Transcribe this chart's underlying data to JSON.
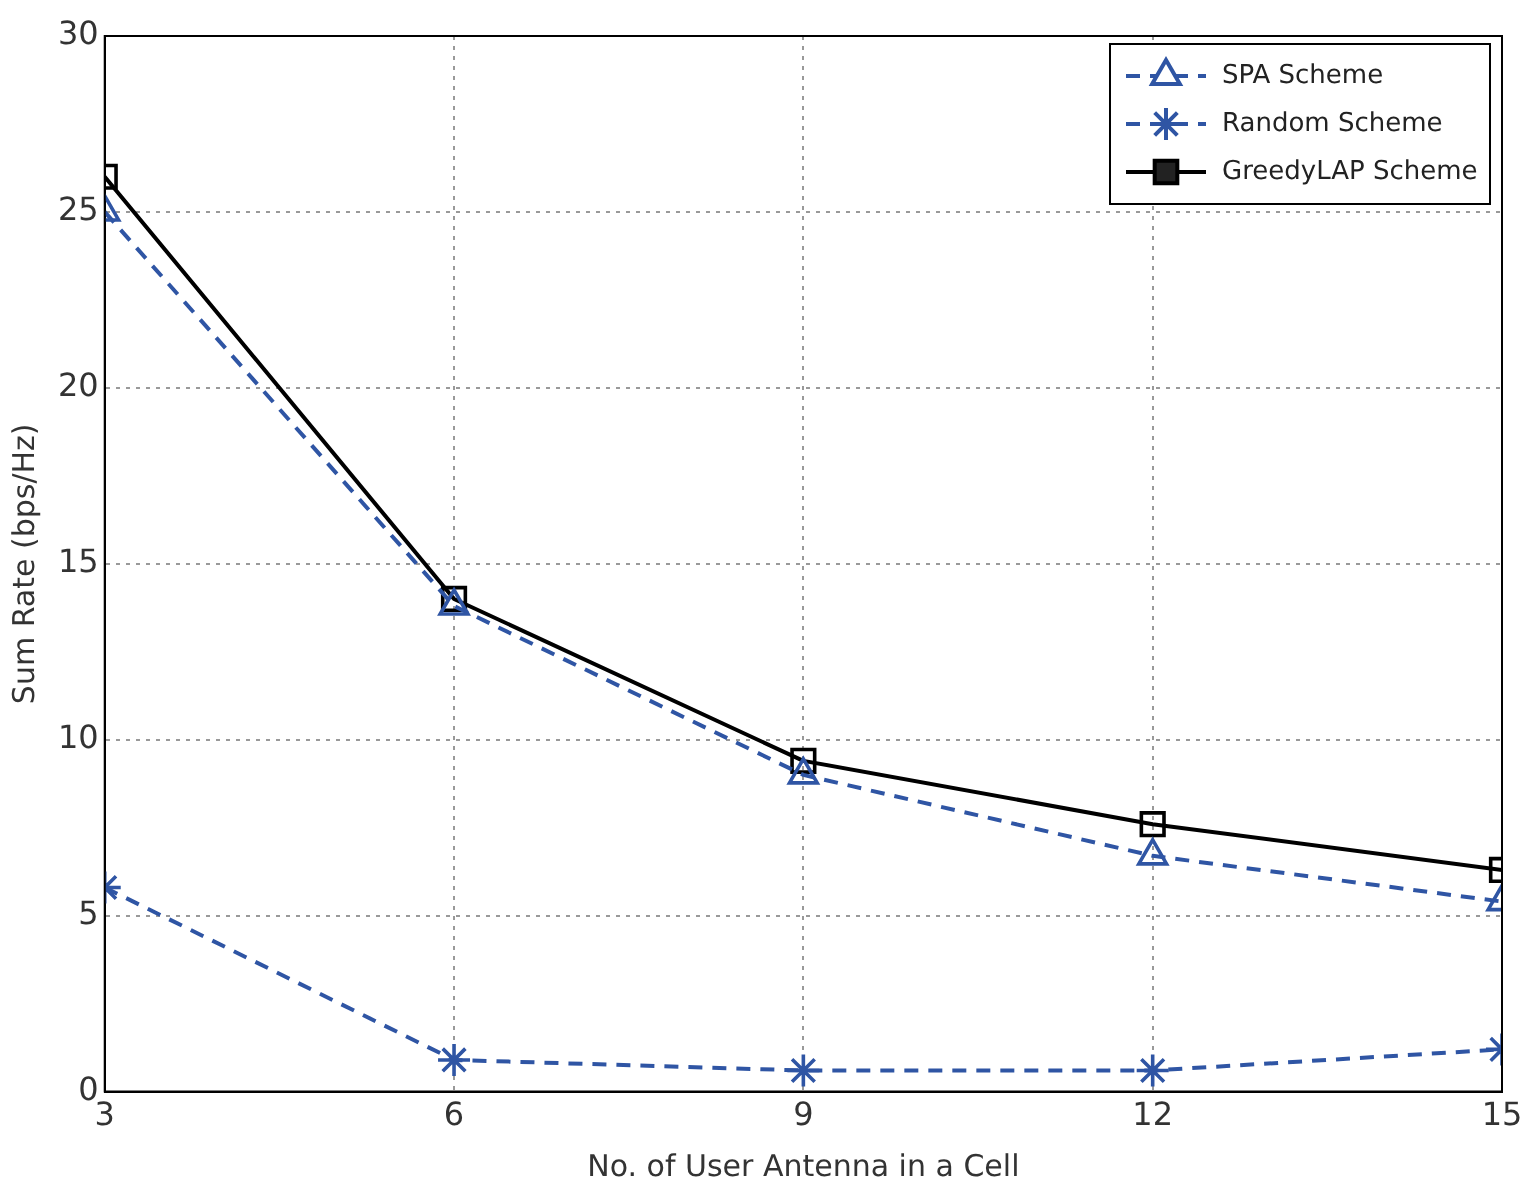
{
  "chart_data": {
    "type": "line",
    "xlabel": "No. of User Antenna in a Cell",
    "ylabel": "Sum Rate (bps/Hz)",
    "x": [
      3,
      6,
      9,
      12,
      15
    ],
    "xlim": [
      3,
      15
    ],
    "xticks": [
      3,
      6,
      9,
      12,
      15
    ],
    "ylim": [
      0,
      30
    ],
    "yticks": [
      0,
      5,
      10,
      15,
      20,
      25,
      30
    ],
    "grid": true,
    "legend": "top right",
    "series": [
      {
        "name": "SPA Scheme",
        "color": "#2f55a4",
        "marker": "triangle",
        "line_style": "dashed",
        "values": [
          25,
          13.8,
          9.0,
          6.7,
          5.4
        ]
      },
      {
        "name": "Random Scheme",
        "color": "#2f55a4",
        "marker": "cross",
        "line_style": "dashed",
        "values": [
          5.8,
          0.9,
          0.6,
          0.6,
          1.2
        ]
      },
      {
        "name": "GreedyLAP Scheme",
        "color": "#000000",
        "marker": "square",
        "line_style": "solid",
        "values": [
          26,
          14,
          9.4,
          7.6,
          6.3
        ]
      }
    ]
  }
}
